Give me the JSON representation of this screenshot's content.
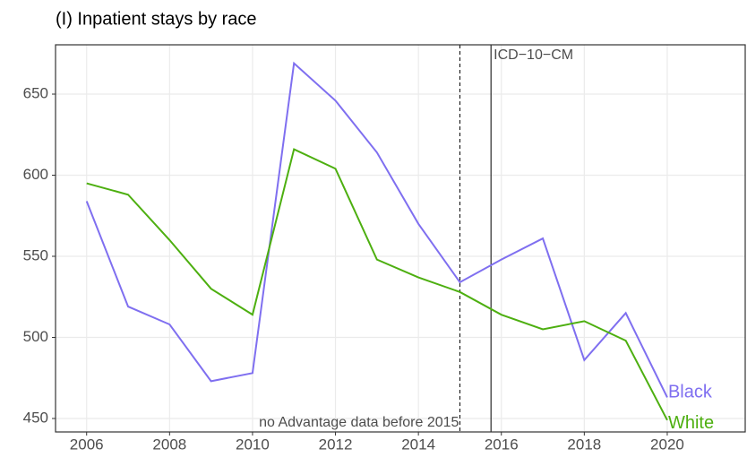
{
  "chart_data": {
    "type": "line",
    "title": "(I) Inpatient stays by race",
    "x": [
      2006,
      2007,
      2008,
      2009,
      2010,
      2011,
      2012,
      2013,
      2014,
      2015,
      2016,
      2017,
      2018,
      2019,
      2020
    ],
    "series": [
      {
        "name": "Black",
        "color": "#7f6ff0",
        "values": [
          584,
          519,
          508,
          473,
          478,
          669,
          646,
          614,
          570,
          534,
          548,
          561,
          486,
          515,
          463
        ]
      },
      {
        "name": "White",
        "color": "#4daf10",
        "values": [
          595,
          588,
          560,
          530,
          514,
          616,
          604,
          548,
          537,
          528,
          514,
          505,
          510,
          498,
          449
        ]
      }
    ],
    "xlim": [
      2005.25,
      2021.88
    ],
    "xticks": [
      2006,
      2008,
      2010,
      2012,
      2014,
      2016,
      2018,
      2020
    ],
    "ylim": [
      441.7,
      680.4
    ],
    "yticks": [
      450,
      500,
      550,
      600,
      650
    ],
    "grid": true,
    "vlines": [
      {
        "x": 2015,
        "style": "dashed",
        "label": "no Advantage data before 2015"
      },
      {
        "x": 2015.75,
        "style": "solid",
        "label": "ICD−10−CM"
      }
    ]
  }
}
